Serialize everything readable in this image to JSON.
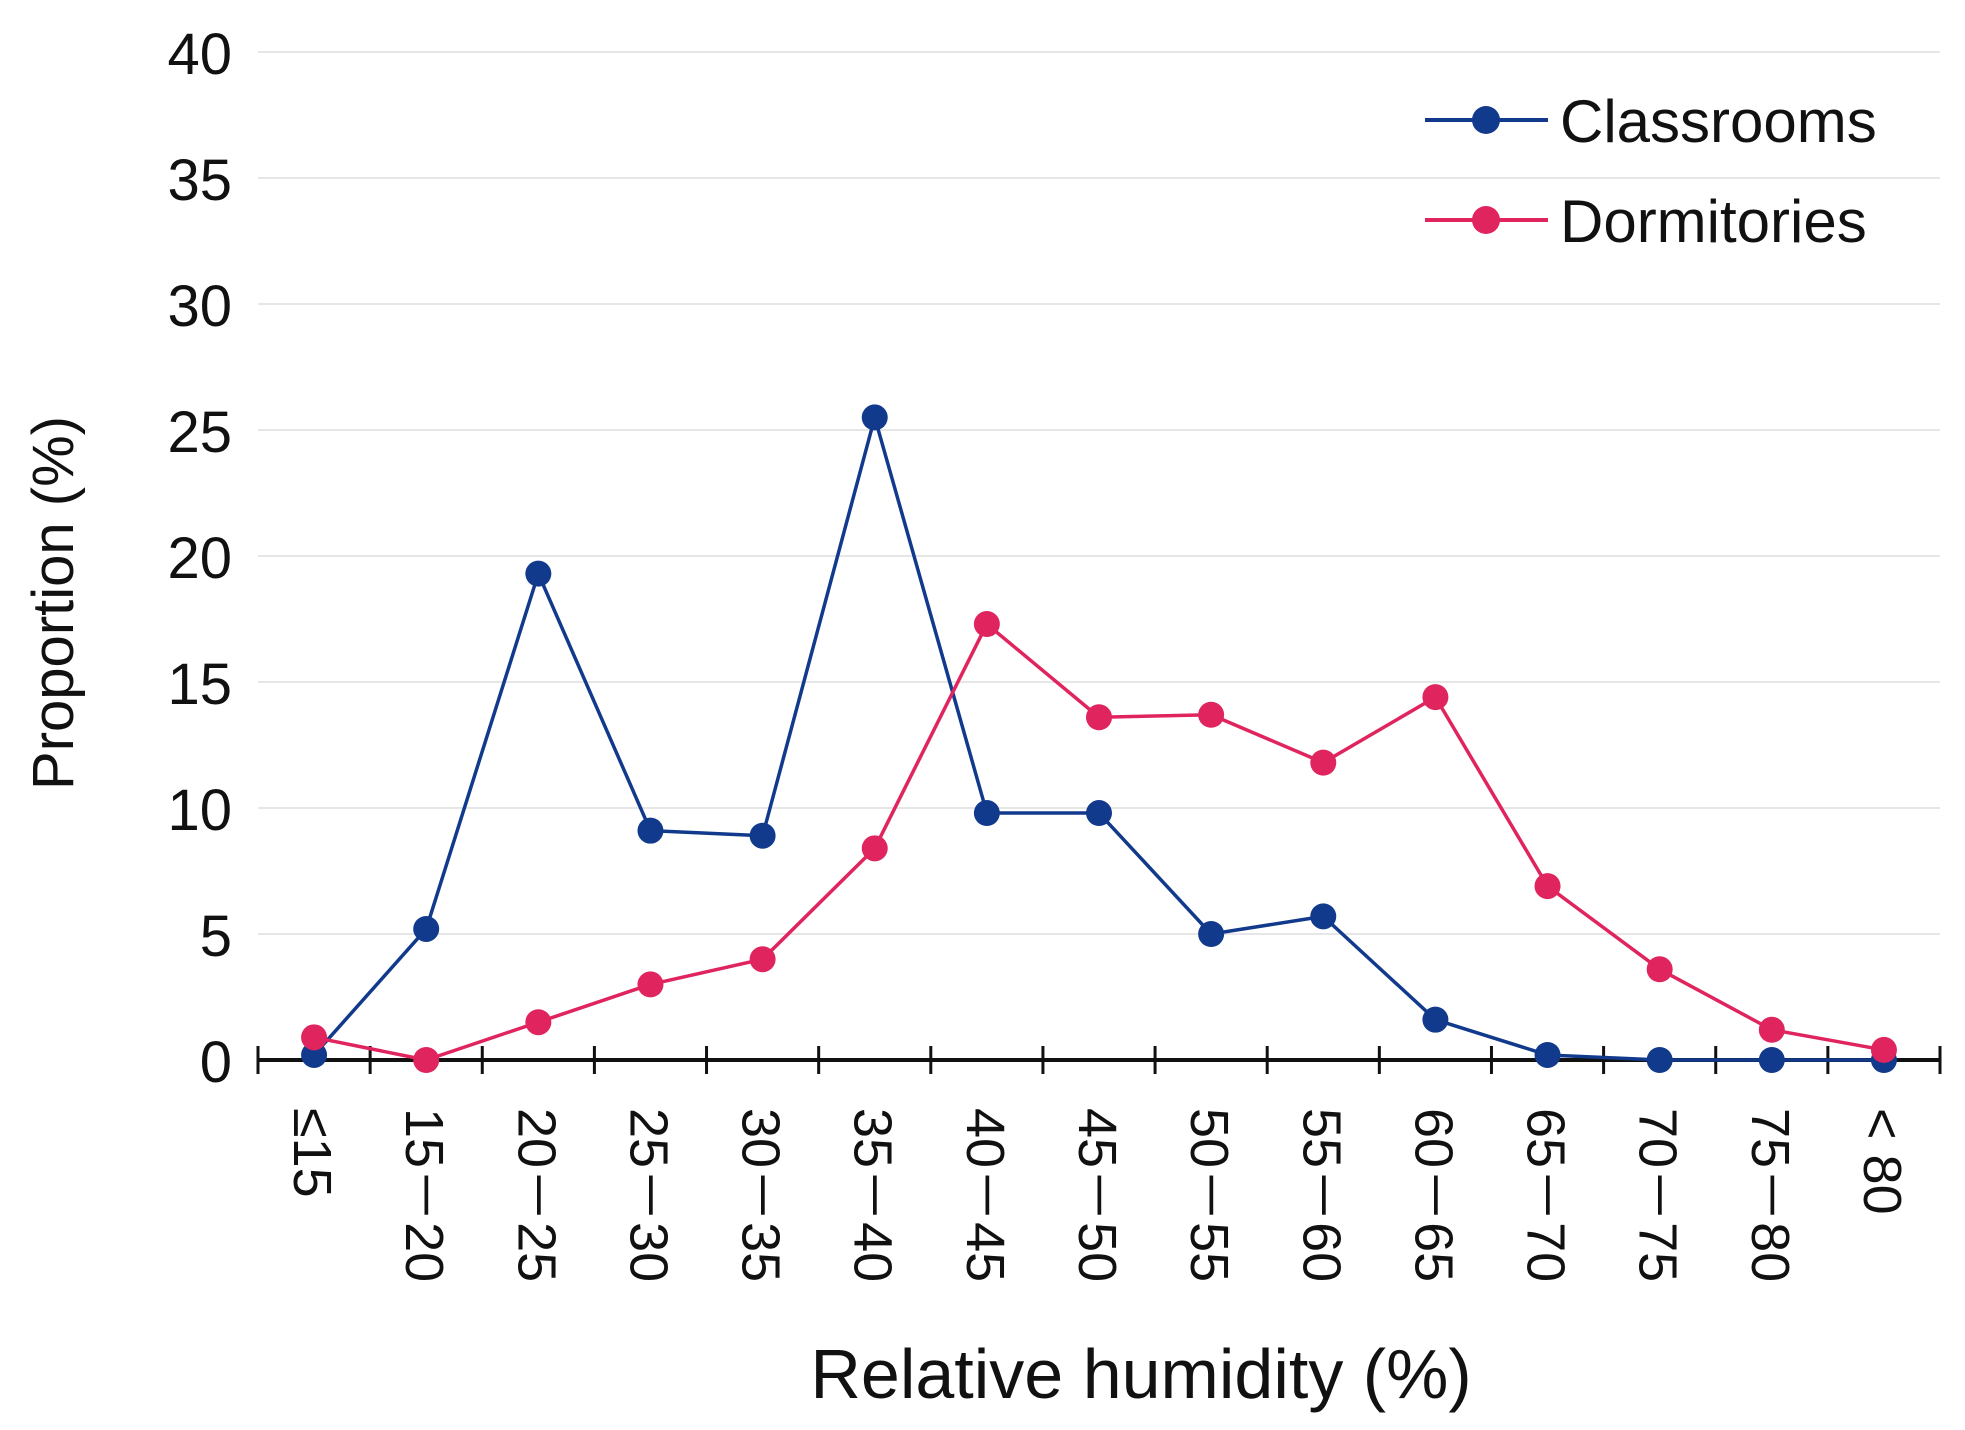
{
  "chart_data": {
    "type": "line",
    "title": "",
    "xlabel": "Relative humidity (%)",
    "ylabel": "Proportion (%)",
    "ylim": [
      0,
      40
    ],
    "yticks": [
      0,
      5,
      10,
      15,
      20,
      25,
      30,
      35,
      40
    ],
    "grid": true,
    "legend_position": "top-right",
    "categories": [
      "≤15",
      "15－20",
      "20－25",
      "25－30",
      "30－35",
      "35－40",
      "40－45",
      "45－50",
      "50－55",
      "55－60",
      "60－65",
      "65－70",
      "70－75",
      "75－80",
      "< 80"
    ],
    "series": [
      {
        "name": "Classrooms",
        "color": "#123a8c",
        "values": [
          0.2,
          5.2,
          19.3,
          9.1,
          8.9,
          25.5,
          9.8,
          9.8,
          5.0,
          5.7,
          1.6,
          0.2,
          0.0,
          0.0,
          0.0
        ]
      },
      {
        "name": "Dormitories",
        "color": "#e0245e",
        "values": [
          0.9,
          0.0,
          1.5,
          3.0,
          4.0,
          8.4,
          17.3,
          13.6,
          13.7,
          11.8,
          14.4,
          6.9,
          3.6,
          1.2,
          0.4
        ]
      }
    ]
  }
}
